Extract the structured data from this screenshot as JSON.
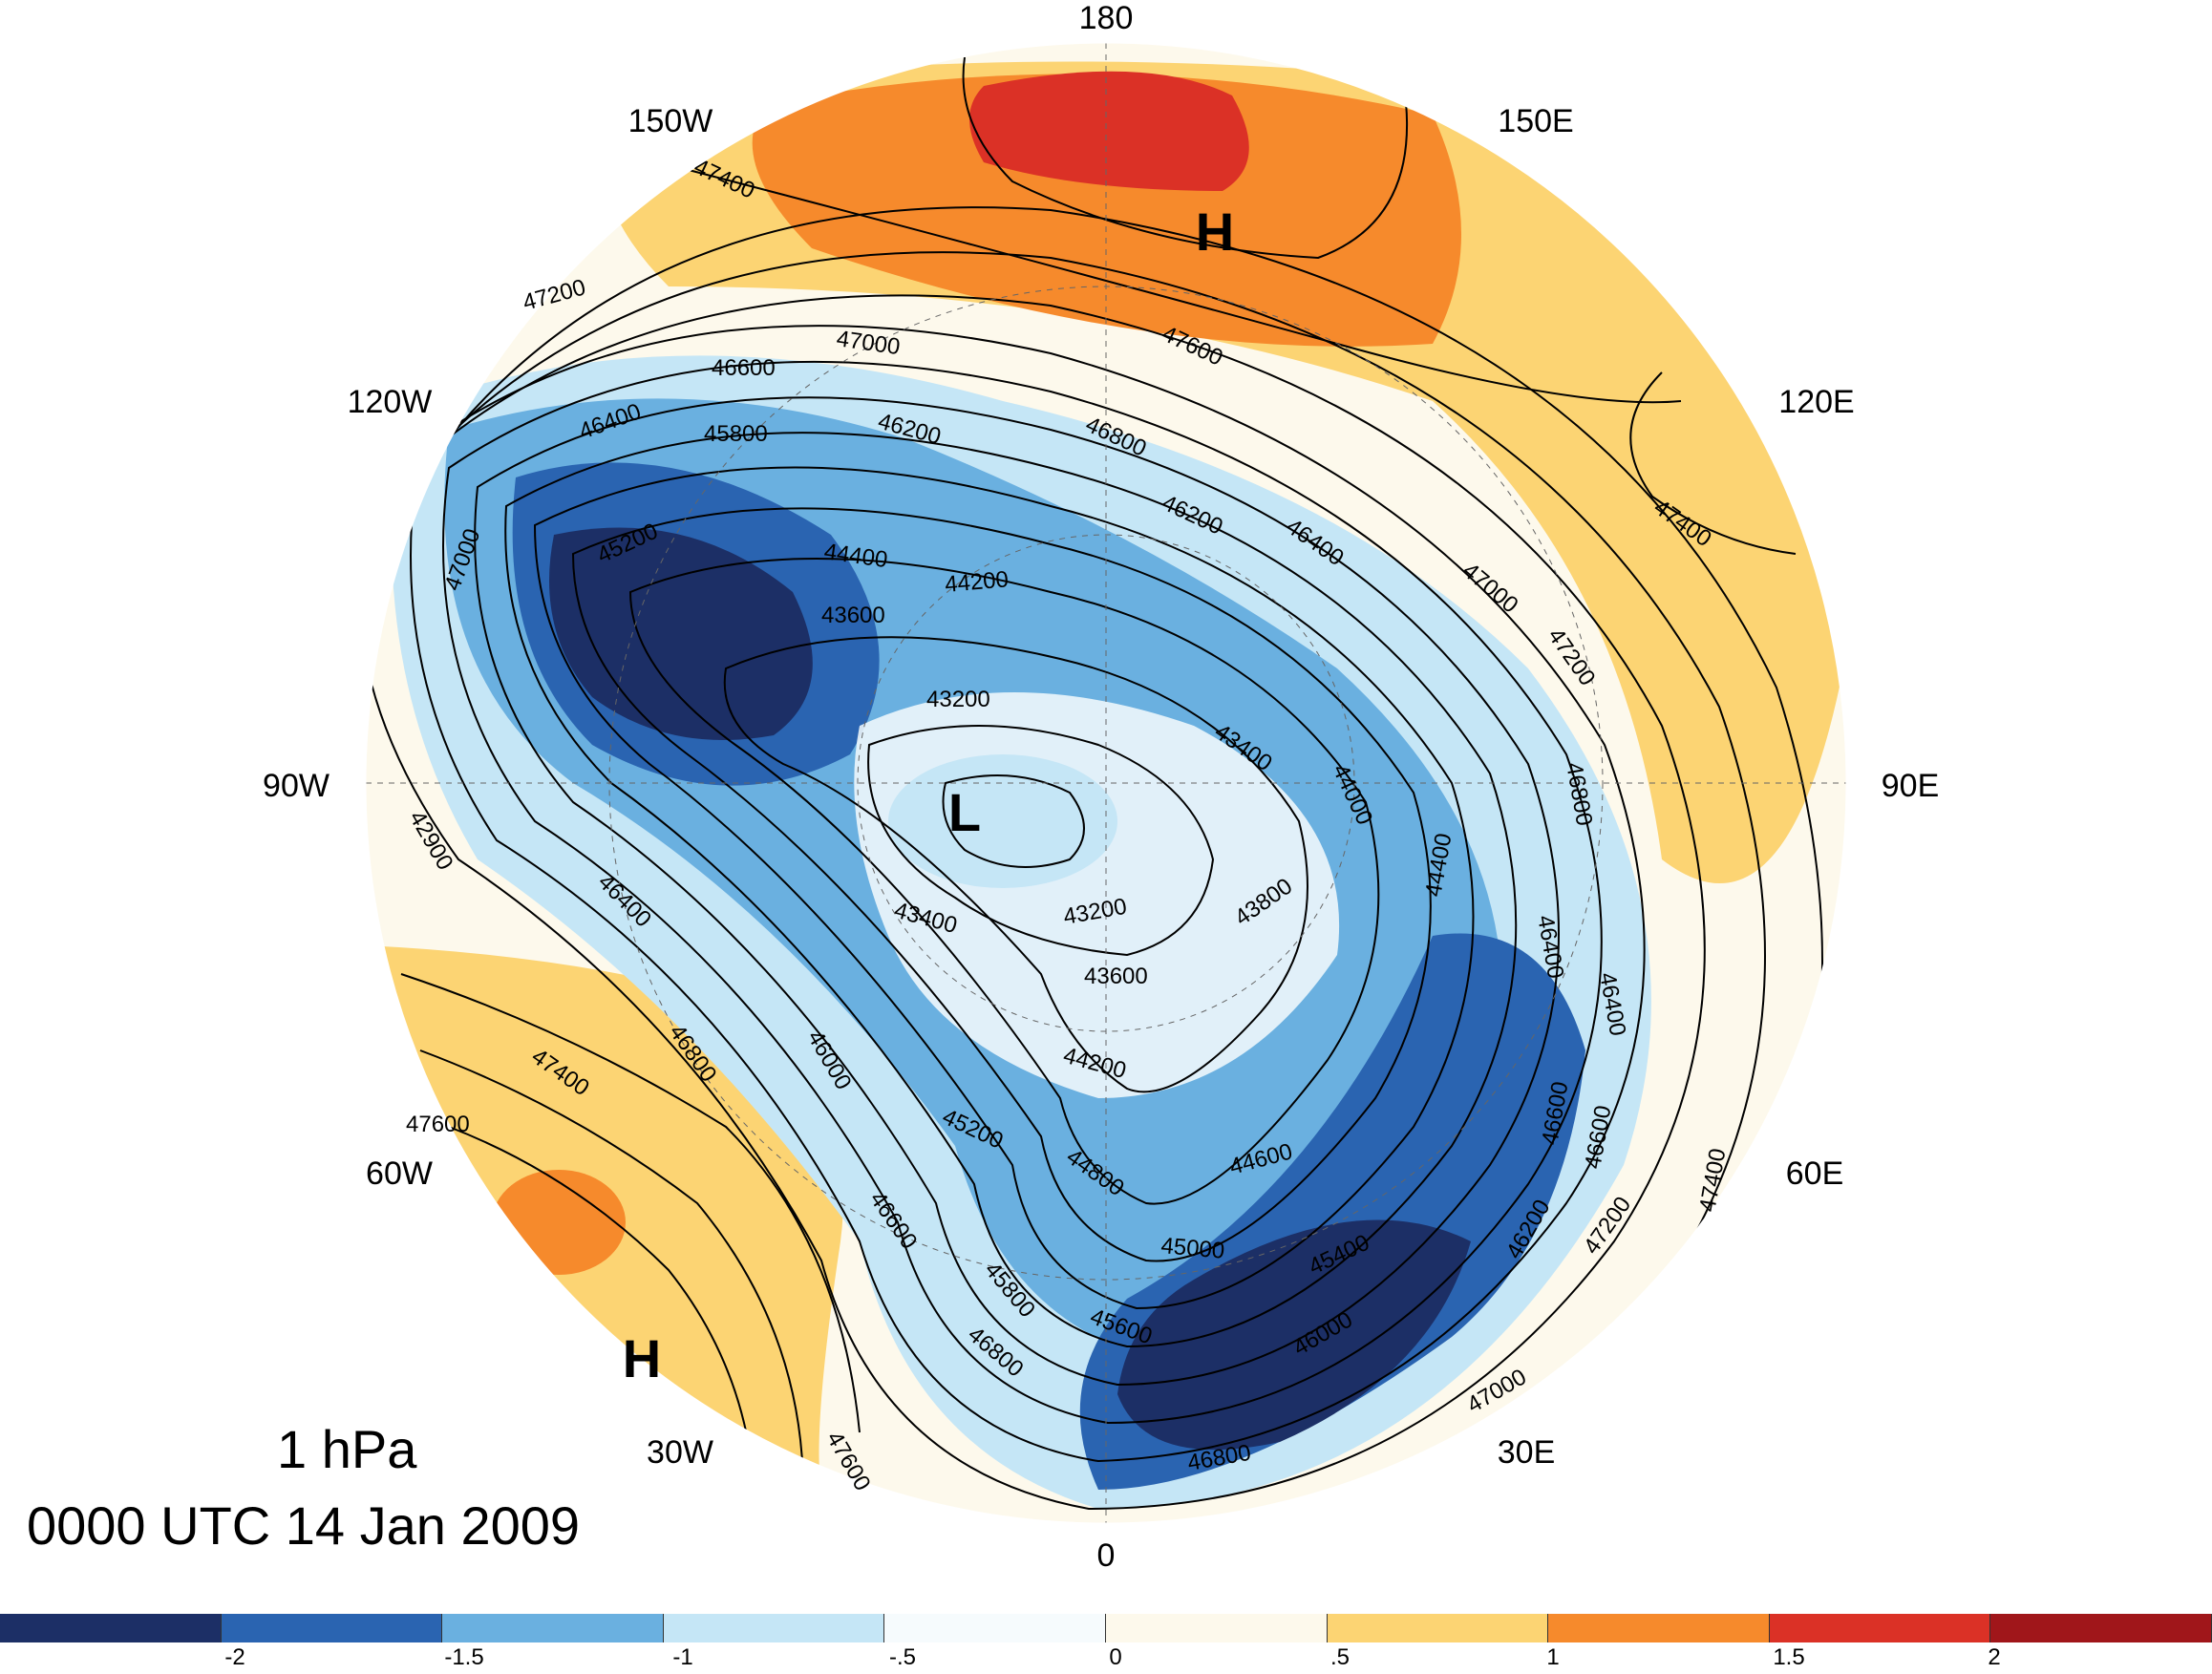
{
  "map": {
    "projection": "north-polar-stereographic",
    "longitude_labels": [
      "180",
      "150E",
      "120E",
      "90E",
      "60E",
      "30E",
      "0",
      "30W",
      "60W",
      "90W",
      "120W",
      "150W"
    ],
    "pressure_level": "1 hPa",
    "valid_time": "0000 UTC 14 Jan 2009",
    "centers": [
      {
        "type": "H",
        "location": "north-pacific"
      },
      {
        "type": "L",
        "location": "pole"
      },
      {
        "type": "H",
        "location": "north-atlantic"
      }
    ],
    "contour_labels": [
      "47400",
      "47200",
      "47000",
      "46600",
      "46400",
      "46200",
      "45800",
      "45200",
      "44400",
      "44200",
      "43600",
      "43200",
      "43400",
      "43800",
      "44000",
      "44400",
      "46800",
      "47000",
      "46200",
      "46400",
      "47600",
      "47200",
      "47000",
      "46800",
      "46600",
      "46400",
      "46200",
      "46000",
      "45800",
      "45600",
      "45400",
      "45200",
      "45000",
      "44800",
      "44600",
      "44200",
      "43600",
      "43400",
      "43200",
      "42900",
      "47600",
      "47400",
      "46800",
      "46600",
      "46000",
      "46400",
      "46800",
      "47400",
      "47000",
      "46800",
      "46600",
      "46400",
      "47600",
      "47400",
      "47200"
    ],
    "shading_colors": {
      "neg_2_below": "#1c2f66",
      "neg_2_to_neg_1_5": "#2a64b1",
      "neg_1_5_to_neg_1": "#6ab0e0",
      "neg_1_to_neg_0_5": "#c5e6f6",
      "neg_0_5_to_0": "#f6fbfd",
      "0_to_0_5": "#fdf9ec",
      "0_5_to_1": "#fcd473",
      "1_to_1_5": "#f68a2c",
      "1_5_to_2": "#db3126",
      "2_above": "#a0161a"
    }
  },
  "colorbar": {
    "tick_labels": [
      "-2",
      "-1.5",
      "-1",
      "-.5",
      "0",
      ".5",
      "1",
      "1.5",
      "2"
    ],
    "colors": [
      "#1c2f66",
      "#2a64b1",
      "#6ab0e0",
      "#c5e6f6",
      "#f6fbfd",
      "#fdf9ec",
      "#fcd473",
      "#f68a2c",
      "#db3126",
      "#a0161a"
    ]
  }
}
